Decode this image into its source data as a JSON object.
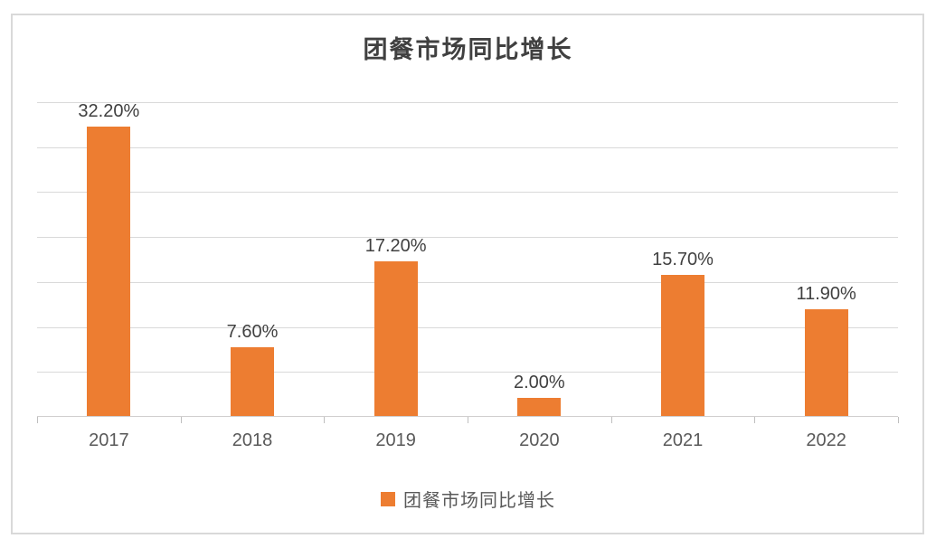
{
  "chart_data": {
    "type": "bar",
    "title": "团餐市场同比增长",
    "categories": [
      "2017",
      "2018",
      "2019",
      "2020",
      "2021",
      "2022"
    ],
    "series": [
      {
        "name": "团餐市场同比增长",
        "values": [
          32.2,
          7.6,
          17.2,
          2.0,
          15.7,
          11.9
        ]
      }
    ],
    "data_labels": [
      "32.20%",
      "7.60%",
      "17.20%",
      "2.00%",
      "15.70%",
      "11.90%"
    ],
    "xlabel": "",
    "ylabel": "",
    "ylim": [
      0,
      35
    ],
    "gridline_step": 5,
    "grid": true,
    "y_tick_labels_visible": false,
    "legend_position": "bottom",
    "legend_entries": [
      "团餐市场同比增长"
    ],
    "colors": {
      "bar": "#ED7D31",
      "gridline": "#D9D9D9",
      "axis_line": "#D0CECE",
      "tick": "#BFBFBF",
      "title_text": "#404040",
      "data_label_text": "#404040",
      "axis_label_text": "#595959",
      "legend_text": "#595959",
      "frame_border": "#D9D9D9"
    }
  }
}
